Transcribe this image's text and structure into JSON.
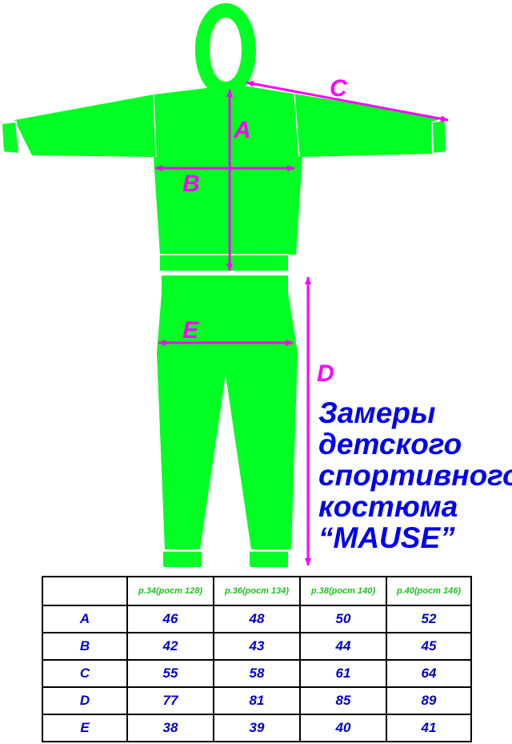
{
  "colors": {
    "garment": "#00ff22",
    "measure": "#ff00ff",
    "title": "#0000ee",
    "header_text": "#22c022",
    "value_text": "#0000cc"
  },
  "labels": {
    "A": "A",
    "B": "B",
    "C": "C",
    "D": "D",
    "E": "E"
  },
  "title_lines": [
    "Замеры",
    "детского",
    "спортивного",
    "костюма",
    "“MAUSE”"
  ],
  "table": {
    "corner": "",
    "columns": [
      "р.34(рост 128)",
      "р.36(рост 134)",
      "р.38(рост 140)",
      "р.40(рост 146)"
    ],
    "rows": [
      {
        "label": "A",
        "values": [
          "46",
          "48",
          "50",
          "52"
        ]
      },
      {
        "label": "B",
        "values": [
          "42",
          "43",
          "44",
          "45"
        ]
      },
      {
        "label": "C",
        "values": [
          "55",
          "58",
          "61",
          "64"
        ]
      },
      {
        "label": "D",
        "values": [
          "77",
          "81",
          "85",
          "89"
        ]
      },
      {
        "label": "E",
        "values": [
          "38",
          "39",
          "40",
          "41"
        ]
      }
    ]
  }
}
